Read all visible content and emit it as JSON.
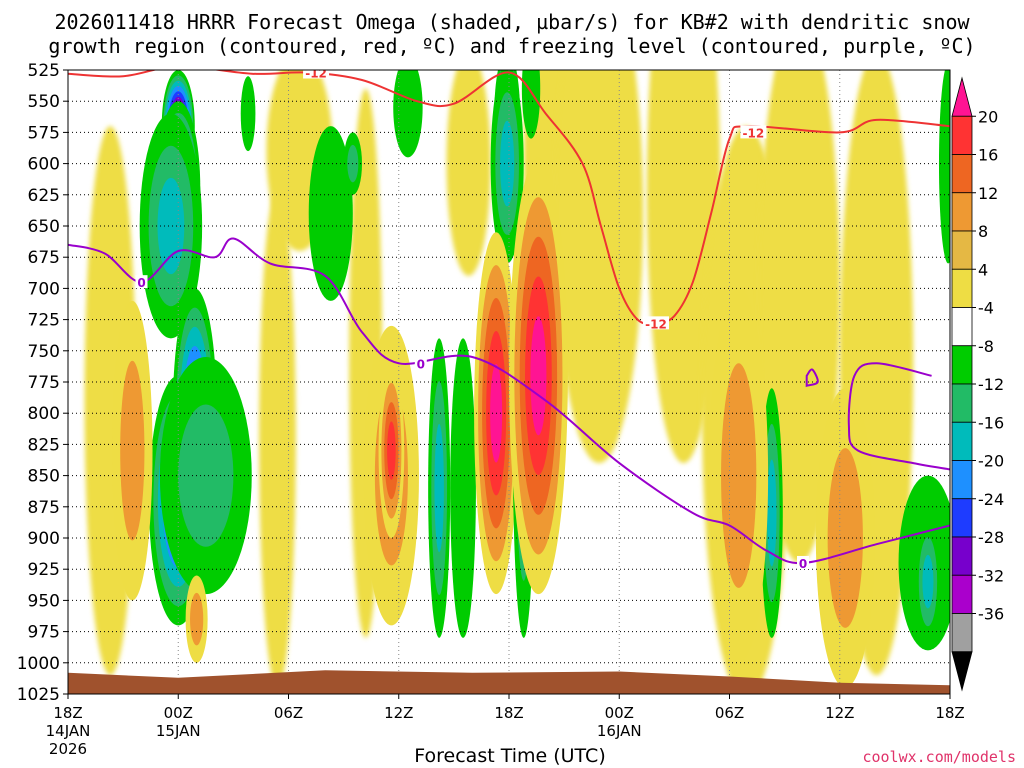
{
  "chart_data": {
    "type": "heatmap",
    "title_line1": "2026011418 HRRR Forecast Omega (shaded, µbar/s) for KB#2 with dendritic snow",
    "title_line2": "growth region (contoured, red, ºC) and freezing level (contoured, purple, ºC)",
    "xlabel": "Forecast Time (UTC)",
    "credit": "coolwx.com/models",
    "y_ticks": [
      525,
      550,
      575,
      600,
      625,
      650,
      675,
      700,
      725,
      750,
      775,
      800,
      825,
      850,
      875,
      900,
      925,
      950,
      975,
      1000,
      1025
    ],
    "ylim": [
      525,
      1025
    ],
    "xlim_hours": [
      0,
      48
    ],
    "x_ticks": [
      {
        "h": 0,
        "label": "18Z",
        "date": "14JAN",
        "year": "2026"
      },
      {
        "h": 6,
        "label": "00Z",
        "date": "15JAN",
        "year": ""
      },
      {
        "h": 12,
        "label": "06Z",
        "date": "",
        "year": ""
      },
      {
        "h": 18,
        "label": "12Z",
        "date": "",
        "year": ""
      },
      {
        "h": 24,
        "label": "18Z",
        "date": "",
        "year": ""
      },
      {
        "h": 30,
        "label": "00Z",
        "date": "16JAN",
        "year": ""
      },
      {
        "h": 36,
        "label": "06Z",
        "date": "",
        "year": ""
      },
      {
        "h": 42,
        "label": "12Z",
        "date": "",
        "year": ""
      },
      {
        "h": 48,
        "label": "18Z",
        "date": "",
        "year": ""
      }
    ],
    "colorbar": {
      "labels": [
        "20",
        "16",
        "12",
        "8",
        "4",
        "-4",
        "-8",
        "-12",
        "-16",
        "-20",
        "-24",
        "-28",
        "-32",
        "-36"
      ],
      "colors": [
        "#ff1493",
        "#ff3333",
        "#ee6622",
        "#ee9933",
        "#e5b844",
        "#eedd44",
        "#ffffff",
        "#00cc00",
        "#22bb66",
        "#00bbbb",
        "#1e90ff",
        "#1e3cff",
        "#7700cc",
        "#aa00cc",
        "#a0a0a0",
        "#000000"
      ]
    },
    "contour_labels": {
      "dendritic": "-12",
      "freezing": "0"
    },
    "dendritic_line": [
      [
        0,
        528
      ],
      [
        3,
        530
      ],
      [
        6,
        522
      ],
      [
        10,
        528
      ],
      [
        13,
        527
      ],
      [
        16,
        533
      ],
      [
        19,
        550
      ],
      [
        21,
        552
      ],
      [
        24,
        527
      ],
      [
        26,
        560
      ],
      [
        28,
        600
      ],
      [
        29,
        650
      ],
      [
        30,
        700
      ],
      [
        31,
        725
      ],
      [
        32,
        728
      ],
      [
        33,
        722
      ],
      [
        34,
        695
      ],
      [
        35,
        640
      ],
      [
        36,
        580
      ],
      [
        37,
        570
      ],
      [
        42,
        575
      ],
      [
        44,
        565
      ],
      [
        48,
        570
      ]
    ],
    "freezing_line": [
      [
        0,
        665
      ],
      [
        2,
        672
      ],
      [
        4,
        695
      ],
      [
        6,
        670
      ],
      [
        8,
        675
      ],
      [
        9,
        660
      ],
      [
        11,
        680
      ],
      [
        14,
        690
      ],
      [
        16,
        735
      ],
      [
        18,
        760
      ],
      [
        22,
        755
      ],
      [
        26,
        790
      ],
      [
        30,
        840
      ],
      [
        34,
        880
      ],
      [
        36,
        890
      ],
      [
        38,
        910
      ],
      [
        40,
        920
      ],
      [
        44,
        905
      ],
      [
        48,
        890
      ]
    ],
    "freezing_blob": [
      [
        40.2,
        770
      ],
      [
        40.5,
        765
      ],
      [
        40.8,
        775
      ],
      [
        40.2,
        778
      ]
    ],
    "freezing_line2": [
      [
        47,
        770
      ],
      [
        44,
        760
      ],
      [
        42.8,
        770
      ],
      [
        42.5,
        810
      ],
      [
        43,
        830
      ],
      [
        46,
        840
      ],
      [
        48,
        845
      ]
    ],
    "surface": [
      [
        0,
        1008
      ],
      [
        6,
        1012
      ],
      [
        14,
        1006
      ],
      [
        22,
        1008
      ],
      [
        30,
        1007
      ],
      [
        36,
        1011
      ],
      [
        42,
        1016
      ],
      [
        48,
        1018
      ]
    ],
    "omega_features": [
      {
        "h": 6.0,
        "p": 570,
        "ws": 0.9,
        "wp": 45,
        "v": -40
      },
      {
        "h": 6.0,
        "p": 620,
        "ws": 1.2,
        "wp": 70,
        "v": -30
      },
      {
        "h": 5.6,
        "p": 650,
        "ws": 1.7,
        "wp": 90,
        "v": -14
      },
      {
        "h": 6.0,
        "p": 860,
        "ws": 1.1,
        "wp": 65,
        "v": -40
      },
      {
        "h": 6.0,
        "p": 870,
        "ws": 1.6,
        "wp": 100,
        "v": -24
      },
      {
        "h": 6.9,
        "p": 790,
        "ws": 0.8,
        "wp": 55,
        "v": -40
      },
      {
        "h": 6.9,
        "p": 800,
        "ws": 1.2,
        "wp": 100,
        "v": -24
      },
      {
        "h": 7.5,
        "p": 850,
        "ws": 2.5,
        "wp": 95,
        "v": -10
      },
      {
        "h": 3.5,
        "p": 830,
        "ws": 1.1,
        "wp": 120,
        "v": 9
      },
      {
        "h": 7.0,
        "p": 965,
        "ws": 0.6,
        "wp": 35,
        "v": 9
      },
      {
        "h": 9.8,
        "p": 560,
        "ws": 0.4,
        "wp": 30,
        "v": -6
      },
      {
        "h": 14.3,
        "p": 640,
        "ws": 1.2,
        "wp": 70,
        "v": -6
      },
      {
        "h": 15.5,
        "p": 600,
        "ws": 0.5,
        "wp": 25,
        "v": -10
      },
      {
        "h": 17.6,
        "p": 850,
        "ws": 1.5,
        "wp": 120,
        "v": 9
      },
      {
        "h": 17.6,
        "p": 830,
        "ws": 0.7,
        "wp": 70,
        "v": 18
      },
      {
        "h": 20.2,
        "p": 860,
        "ws": 0.6,
        "wp": 120,
        "v": -14
      },
      {
        "h": 21.5,
        "p": 860,
        "ws": 0.7,
        "wp": 120,
        "v": -6
      },
      {
        "h": 18.5,
        "p": 555,
        "ws": 0.8,
        "wp": 40,
        "v": -6
      },
      {
        "h": 23.9,
        "p": 560,
        "ws": 0.7,
        "wp": 50,
        "v": -28
      },
      {
        "h": 23.9,
        "p": 600,
        "ws": 0.9,
        "wp": 80,
        "v": -14
      },
      {
        "h": 23.3,
        "p": 800,
        "ws": 1.2,
        "wp": 145,
        "v": 21
      },
      {
        "h": 24.8,
        "p": 830,
        "ws": 0.4,
        "wp": 120,
        "v": -28
      },
      {
        "h": 24.8,
        "p": 820,
        "ws": 0.6,
        "wp": 160,
        "v": -14
      },
      {
        "h": 25.2,
        "p": 540,
        "ws": 0.5,
        "wp": 40,
        "v": -6
      },
      {
        "h": 25.6,
        "p": 770,
        "ws": 1.6,
        "wp": 175,
        "v": 21
      },
      {
        "h": 38.3,
        "p": 880,
        "ws": 0.6,
        "wp": 100,
        "v": -14
      },
      {
        "h": 36.5,
        "p": 850,
        "ws": 1.6,
        "wp": 150,
        "v": 9
      },
      {
        "h": 42.3,
        "p": 910,
        "ws": 0.9,
        "wp": 70,
        "v": 21
      },
      {
        "h": 42.3,
        "p": 900,
        "ws": 1.6,
        "wp": 120,
        "v": 9
      },
      {
        "h": 46.8,
        "p": 920,
        "ws": 1.6,
        "wp": 70,
        "v": -6
      },
      {
        "h": 46.8,
        "p": 935,
        "ws": 0.7,
        "wp": 50,
        "v": -14
      },
      {
        "h": 47.9,
        "p": 600,
        "ws": 0.5,
        "wp": 80,
        "v": -6
      }
    ],
    "omega_bands": [
      {
        "h": 2.3,
        "p": 790,
        "ws": 1.4,
        "wp": 220
      },
      {
        "h": 11.4,
        "p": 820,
        "ws": 1.0,
        "wp": 200
      },
      {
        "h": 16.2,
        "p": 760,
        "ws": 0.9,
        "wp": 220
      },
      {
        "h": 26.4,
        "p": 600,
        "ws": 1.6,
        "wp": 200
      },
      {
        "h": 28.9,
        "p": 640,
        "ws": 2.4,
        "wp": 200
      },
      {
        "h": 33.5,
        "p": 620,
        "ws": 2.0,
        "wp": 220
      },
      {
        "h": 36.9,
        "p": 800,
        "ws": 2.4,
        "wp": 230
      },
      {
        "h": 39.8,
        "p": 700,
        "ws": 2.2,
        "wp": 220
      },
      {
        "h": 44.0,
        "p": 760,
        "ws": 2.0,
        "wp": 250
      },
      {
        "h": 12.6,
        "p": 590,
        "ws": 1.8,
        "wp": 80
      },
      {
        "h": 21.8,
        "p": 600,
        "ws": 1.2,
        "wp": 90
      }
    ]
  }
}
